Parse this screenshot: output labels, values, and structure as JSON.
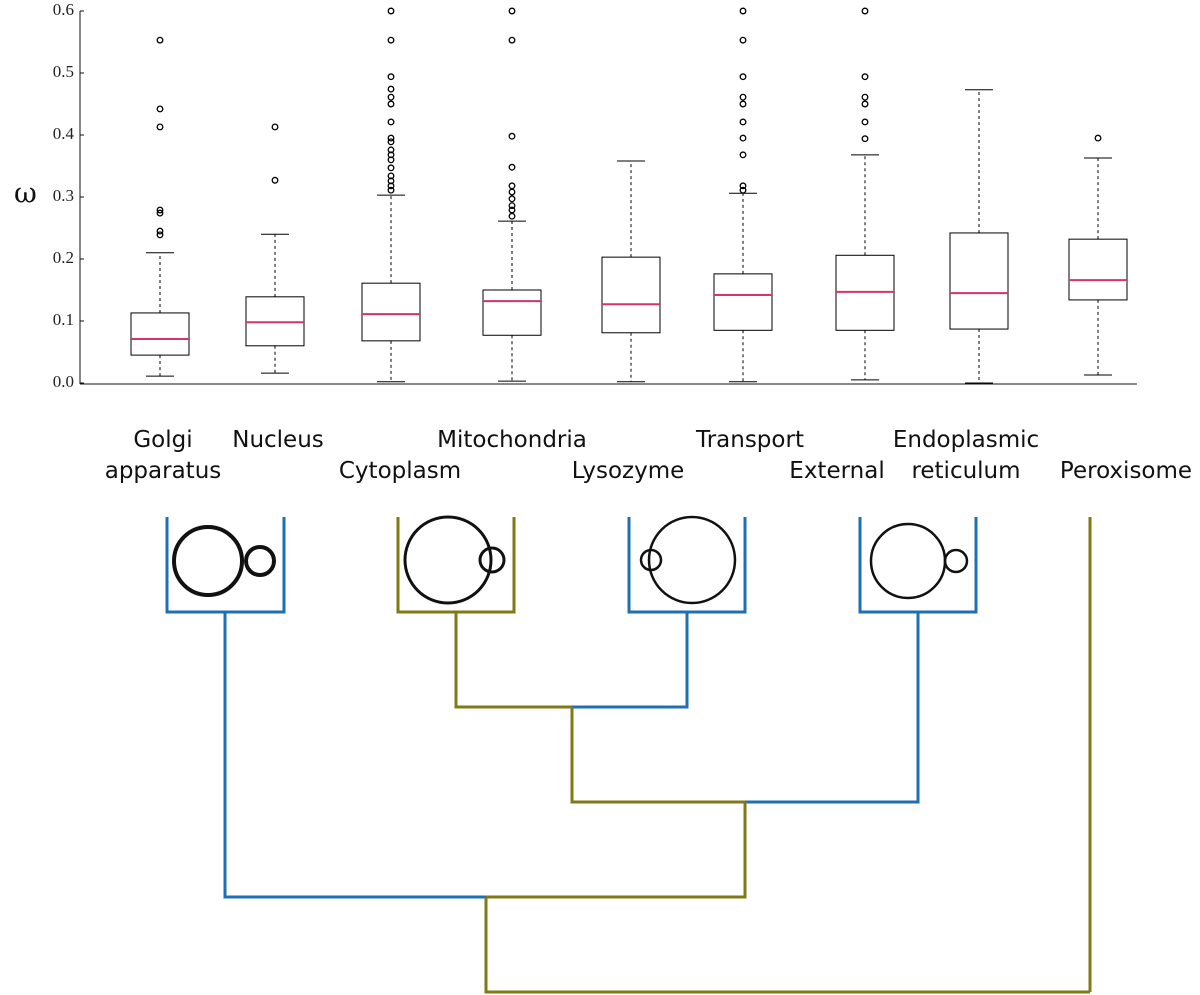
{
  "chart_data": {
    "type": "box",
    "y_label": "ω",
    "categories": [
      "Golgi apparatus",
      "Nucleus",
      "Cytoplasm",
      "Mitochondria",
      "Lysozyme",
      "Transport",
      "External",
      "Endoplasmic reticulum",
      "Peroxisome"
    ],
    "ylim": [
      0,
      0.6
    ],
    "yticks": [
      {
        "value": 0,
        "label": "0.0"
      },
      0.1,
      0.2,
      0.3,
      0.4,
      0.5,
      0.6
    ],
    "box_color": "#000000",
    "median_color": "#d6336c",
    "boxes": [
      {
        "whislo": 0.011,
        "q1": 0.045,
        "med": 0.071,
        "q3": 0.113,
        "whishi": 0.21,
        "fliers": [
          0.553,
          0.442,
          0.413,
          0.279,
          0.274,
          0.245,
          0.239
        ]
      },
      {
        "whislo": 0.016,
        "q1": 0.06,
        "med": 0.098,
        "q3": 0.139,
        "whishi": 0.24,
        "fliers": [
          0.413,
          0.327
        ]
      },
      {
        "whislo": 0.002,
        "q1": 0.068,
        "med": 0.111,
        "q3": 0.161,
        "whishi": 0.303,
        "fliers": [
          0.6,
          0.553,
          0.494,
          0.474,
          0.461,
          0.45,
          0.421,
          0.395,
          0.389,
          0.376,
          0.368,
          0.36,
          0.347,
          0.334,
          0.326,
          0.318,
          0.311
        ]
      },
      {
        "whislo": 0.003,
        "q1": 0.077,
        "med": 0.132,
        "q3": 0.15,
        "whishi": 0.261,
        "fliers": [
          0.6,
          0.553,
          0.398,
          0.348,
          0.318,
          0.308,
          0.297,
          0.286,
          0.279,
          0.269
        ]
      },
      {
        "whislo": 0.002,
        "q1": 0.081,
        "med": 0.127,
        "q3": 0.203,
        "whishi": 0.358,
        "fliers": []
      },
      {
        "whislo": 0.002,
        "q1": 0.085,
        "med": 0.142,
        "q3": 0.176,
        "whishi": 0.306,
        "fliers": [
          0.6,
          0.553,
          0.494,
          0.461,
          0.45,
          0.421,
          0.395,
          0.368,
          0.318,
          0.311
        ]
      },
      {
        "whislo": 0.005,
        "q1": 0.085,
        "med": 0.147,
        "q3": 0.206,
        "whishi": 0.368,
        "fliers": [
          0.6,
          0.494,
          0.461,
          0.45,
          0.421,
          0.394
        ]
      },
      {
        "whislo": 0.0,
        "q1": 0.087,
        "med": 0.145,
        "q3": 0.242,
        "whishi": 0.473,
        "fliers": []
      },
      {
        "whislo": 0.013,
        "q1": 0.134,
        "med": 0.166,
        "q3": 0.232,
        "whishi": 0.363,
        "fliers": [
          0.395
        ]
      }
    ]
  }
}
